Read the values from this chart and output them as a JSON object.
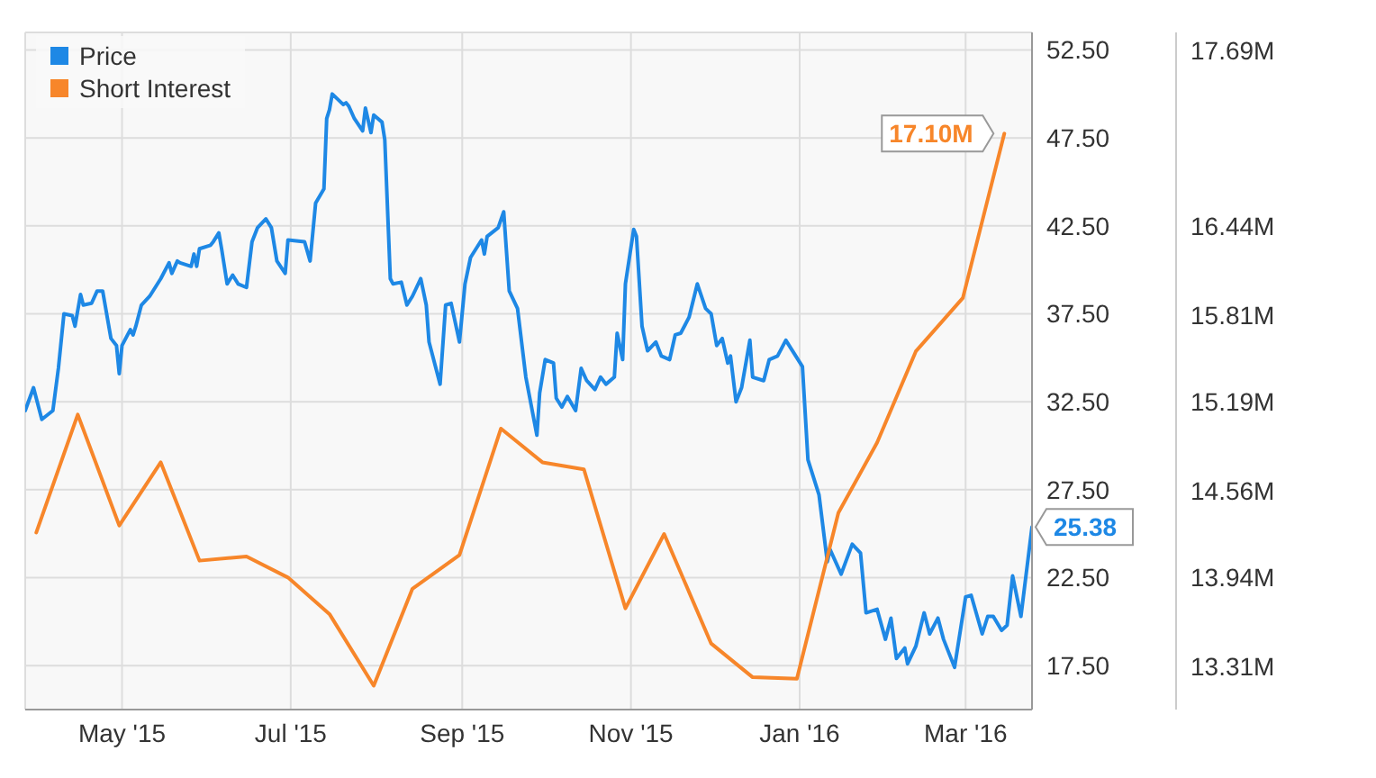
{
  "chart_data": {
    "type": "line",
    "legend": "top left",
    "grid": true,
    "xlim": [
      "2015-03-27",
      "2016-03-25"
    ],
    "xticks": [
      {
        "value": "2015-05-01",
        "label": "May '15"
      },
      {
        "value": "2015-07-01",
        "label": "Jul '15"
      },
      {
        "value": "2015-09-01",
        "label": "Sep '15"
      },
      {
        "value": "2015-11-01",
        "label": "Nov '15"
      },
      {
        "value": "2016-01-01",
        "label": "Jan '16"
      },
      {
        "value": "2016-03-01",
        "label": "Mar '16"
      }
    ],
    "ylim": [
      15,
      53.5
    ],
    "yticks": [
      {
        "value": 17.5,
        "label": "17.50"
      },
      {
        "value": 22.5,
        "label": "22.50"
      },
      {
        "value": 27.5,
        "label": "27.50"
      },
      {
        "value": 32.5,
        "label": "32.50"
      },
      {
        "value": 37.5,
        "label": "37.50"
      },
      {
        "value": 42.5,
        "label": "42.50"
      },
      {
        "value": 47.5,
        "label": "47.50"
      },
      {
        "value": 52.5,
        "label": "52.50"
      }
    ],
    "y2lim": [
      13.0,
      17.82
    ],
    "y2ticks": [
      {
        "value": 13.31,
        "label": "13.31M"
      },
      {
        "value": 13.94,
        "label": "13.94M"
      },
      {
        "value": 14.56,
        "label": "14.56M"
      },
      {
        "value": 15.19,
        "label": "15.19M"
      },
      {
        "value": 15.81,
        "label": "15.81M"
      },
      {
        "value": 16.44,
        "label": "16.44M"
      },
      {
        "value": 17.69,
        "label": "17.69M"
      }
    ],
    "series": [
      {
        "name": "Price",
        "color": "#1e88e5",
        "x": [
          "2015-03-27",
          "2015-03-30",
          "2015-04-02",
          "2015-04-06",
          "2015-04-08",
          "2015-04-10",
          "2015-04-13",
          "2015-04-14",
          "2015-04-16",
          "2015-04-17",
          "2015-04-20",
          "2015-04-22",
          "2015-04-24",
          "2015-04-27",
          "2015-04-29",
          "2015-04-30",
          "2015-05-01",
          "2015-05-04",
          "2015-05-05",
          "2015-05-06",
          "2015-05-08",
          "2015-05-11",
          "2015-05-13",
          "2015-05-15",
          "2015-05-18",
          "2015-05-19",
          "2015-05-21",
          "2015-05-22",
          "2015-05-26",
          "2015-05-27",
          "2015-05-28",
          "2015-05-29",
          "2015-06-02",
          "2015-06-03",
          "2015-06-05",
          "2015-06-06",
          "2015-06-08",
          "2015-06-10",
          "2015-06-12",
          "2015-06-15",
          "2015-06-17",
          "2015-06-19",
          "2015-06-22",
          "2015-06-24",
          "2015-06-26",
          "2015-06-29",
          "2015-06-30",
          "2015-07-06",
          "2015-07-08",
          "2015-07-10",
          "2015-07-13",
          "2015-07-14",
          "2015-07-15",
          "2015-07-16",
          "2015-07-20",
          "2015-07-21",
          "2015-07-22",
          "2015-07-24",
          "2015-07-27",
          "2015-07-28",
          "2015-07-30",
          "2015-07-31",
          "2015-08-03",
          "2015-08-04",
          "2015-08-06",
          "2015-08-07",
          "2015-08-10",
          "2015-08-12",
          "2015-08-14",
          "2015-08-17",
          "2015-08-19",
          "2015-08-20",
          "2015-08-24",
          "2015-08-26",
          "2015-08-28",
          "2015-08-31",
          "2015-09-02",
          "2015-09-04",
          "2015-09-08",
          "2015-09-09",
          "2015-09-10",
          "2015-09-14",
          "2015-09-16",
          "2015-09-18",
          "2015-09-21",
          "2015-09-24",
          "2015-09-28",
          "2015-09-29",
          "2015-10-01",
          "2015-10-04",
          "2015-10-05",
          "2015-10-07",
          "2015-10-09",
          "2015-10-12",
          "2015-10-14",
          "2015-10-16",
          "2015-10-19",
          "2015-10-21",
          "2015-10-23",
          "2015-10-26",
          "2015-10-27",
          "2015-10-29",
          "2015-10-30",
          "2015-11-02",
          "2015-11-03",
          "2015-11-05",
          "2015-11-07",
          "2015-11-10",
          "2015-11-12",
          "2015-11-15",
          "2015-11-17",
          "2015-11-19",
          "2015-11-22",
          "2015-11-25",
          "2015-11-28",
          "2015-11-30",
          "2015-12-02",
          "2015-12-04",
          "2015-12-06",
          "2015-12-07",
          "2015-12-09",
          "2015-12-11",
          "2015-12-14",
          "2015-12-15",
          "2015-12-19",
          "2015-12-21",
          "2015-12-24",
          "2015-12-27",
          "2016-01-02",
          "2016-01-04",
          "2016-01-06",
          "2016-01-08",
          "2016-01-11",
          "2016-01-12",
          "2016-01-16",
          "2016-01-20",
          "2016-01-23",
          "2016-01-25",
          "2016-01-29",
          "2016-02-01",
          "2016-02-03",
          "2016-02-05",
          "2016-02-08",
          "2016-02-09",
          "2016-02-12",
          "2016-02-15",
          "2016-02-17",
          "2016-02-20",
          "2016-02-22",
          "2016-02-26",
          "2016-03-01",
          "2016-03-03",
          "2016-03-07",
          "2016-03-09",
          "2016-03-11",
          "2016-03-14",
          "2016-03-16",
          "2016-03-18",
          "2016-03-21",
          "2016-03-25"
        ],
        "values": [
          32.0,
          33.3,
          31.5,
          32.0,
          34.4,
          37.5,
          37.4,
          36.8,
          38.6,
          38.0,
          38.1,
          38.8,
          38.8,
          36.1,
          35.7,
          34.1,
          35.7,
          36.6,
          36.3,
          36.8,
          38.0,
          38.5,
          39.0,
          39.5,
          40.4,
          39.8,
          40.5,
          40.4,
          40.2,
          40.9,
          40.2,
          41.2,
          41.4,
          41.6,
          42.1,
          41.2,
          39.2,
          39.7,
          39.2,
          39.0,
          41.6,
          42.4,
          42.9,
          42.4,
          40.5,
          39.8,
          41.7,
          41.6,
          40.5,
          43.8,
          44.6,
          48.6,
          49.1,
          50.0,
          49.4,
          49.5,
          49.3,
          48.6,
          47.9,
          49.2,
          47.8,
          48.8,
          48.4,
          47.4,
          39.5,
          39.2,
          39.3,
          38.0,
          38.5,
          39.5,
          38.0,
          35.9,
          33.5,
          38.0,
          38.1,
          35.9,
          39.2,
          40.7,
          41.7,
          40.9,
          41.9,
          42.4,
          43.3,
          38.8,
          37.8,
          33.9,
          30.6,
          33.0,
          34.9,
          34.7,
          32.7,
          32.2,
          32.8,
          32.0,
          34.4,
          33.7,
          33.2,
          33.9,
          33.5,
          33.9,
          36.4,
          34.9,
          39.2,
          42.3,
          41.9,
          36.8,
          35.4,
          35.9,
          35.1,
          34.9,
          36.3,
          36.4,
          37.3,
          39.2,
          37.8,
          37.5,
          35.7,
          36.1,
          34.7,
          35.1,
          32.5,
          33.3,
          36.0,
          33.9,
          33.7,
          34.9,
          35.1,
          36.0,
          34.5,
          29.2,
          28.2,
          27.2,
          23.4,
          24.1,
          22.7,
          24.4,
          23.9,
          20.5,
          20.7,
          19.0,
          20.2,
          17.9,
          18.5,
          17.6,
          18.6,
          20.5,
          19.3,
          20.2,
          19.0,
          17.4,
          21.4,
          21.5,
          19.3,
          20.3,
          20.3,
          19.5,
          19.8,
          22.6,
          20.3,
          25.38
        ],
        "value_labels": [
          null,
          null,
          null,
          null,
          null,
          null,
          null,
          null,
          null,
          null,
          null,
          null,
          null,
          null,
          null,
          null,
          null,
          null,
          null,
          null,
          null,
          null,
          null,
          null,
          null,
          null,
          null,
          null,
          null,
          null,
          null,
          null,
          null,
          null,
          null,
          null,
          null,
          null,
          null,
          null,
          null,
          null,
          null,
          null,
          null,
          null,
          null,
          null,
          null,
          null,
          null,
          null,
          null,
          null,
          null,
          null,
          null,
          null,
          null,
          null,
          null,
          null,
          null,
          null,
          null,
          null,
          null,
          null,
          null,
          null,
          null,
          null,
          null,
          null,
          null,
          null,
          null,
          null,
          null,
          null,
          null,
          null,
          null,
          null,
          null,
          null,
          null,
          null,
          null,
          null,
          null,
          null,
          null,
          null,
          null,
          null,
          null,
          null,
          null,
          null,
          null,
          null,
          null,
          null,
          null,
          null,
          null,
          null,
          null,
          null,
          null,
          null,
          null,
          null,
          null,
          null,
          null,
          null,
          null,
          null,
          null,
          null,
          null,
          null,
          null,
          null,
          null,
          null,
          null,
          null,
          null,
          null,
          null,
          null,
          null,
          null,
          null,
          null,
          null,
          null,
          null,
          null,
          null,
          null,
          null,
          null,
          null,
          null,
          null,
          null,
          null,
          null,
          null,
          null,
          null,
          null,
          null,
          null,
          null,
          "25.38"
        ]
      },
      {
        "name": "Short Interest",
        "color": "#f7862a",
        "axis": "y2",
        "x": [
          "2015-03-31",
          "2015-04-15",
          "2015-04-30",
          "2015-05-15",
          "2015-05-29",
          "2015-06-15",
          "2015-06-30",
          "2015-07-15",
          "2015-07-31",
          "2015-08-14",
          "2015-08-31",
          "2015-09-15",
          "2015-09-30",
          "2015-10-15",
          "2015-10-30",
          "2015-11-13",
          "2015-11-30",
          "2015-12-15",
          "2015-12-31",
          "2016-01-15",
          "2016-01-29",
          "2016-02-12",
          "2016-02-29",
          "2016-03-15"
        ],
        "values": [
          14.26,
          15.1,
          14.31,
          14.76,
          14.06,
          14.09,
          13.94,
          13.68,
          13.17,
          13.86,
          14.1,
          15.0,
          14.76,
          14.71,
          13.72,
          14.25,
          13.47,
          13.23,
          13.22,
          14.4,
          14.9,
          15.55,
          15.93,
          17.1
        ],
        "value_labels": [
          null,
          null,
          null,
          null,
          null,
          null,
          null,
          null,
          null,
          null,
          null,
          null,
          null,
          null,
          null,
          null,
          null,
          null,
          null,
          null,
          null,
          null,
          null,
          "17.10M"
        ]
      }
    ]
  }
}
